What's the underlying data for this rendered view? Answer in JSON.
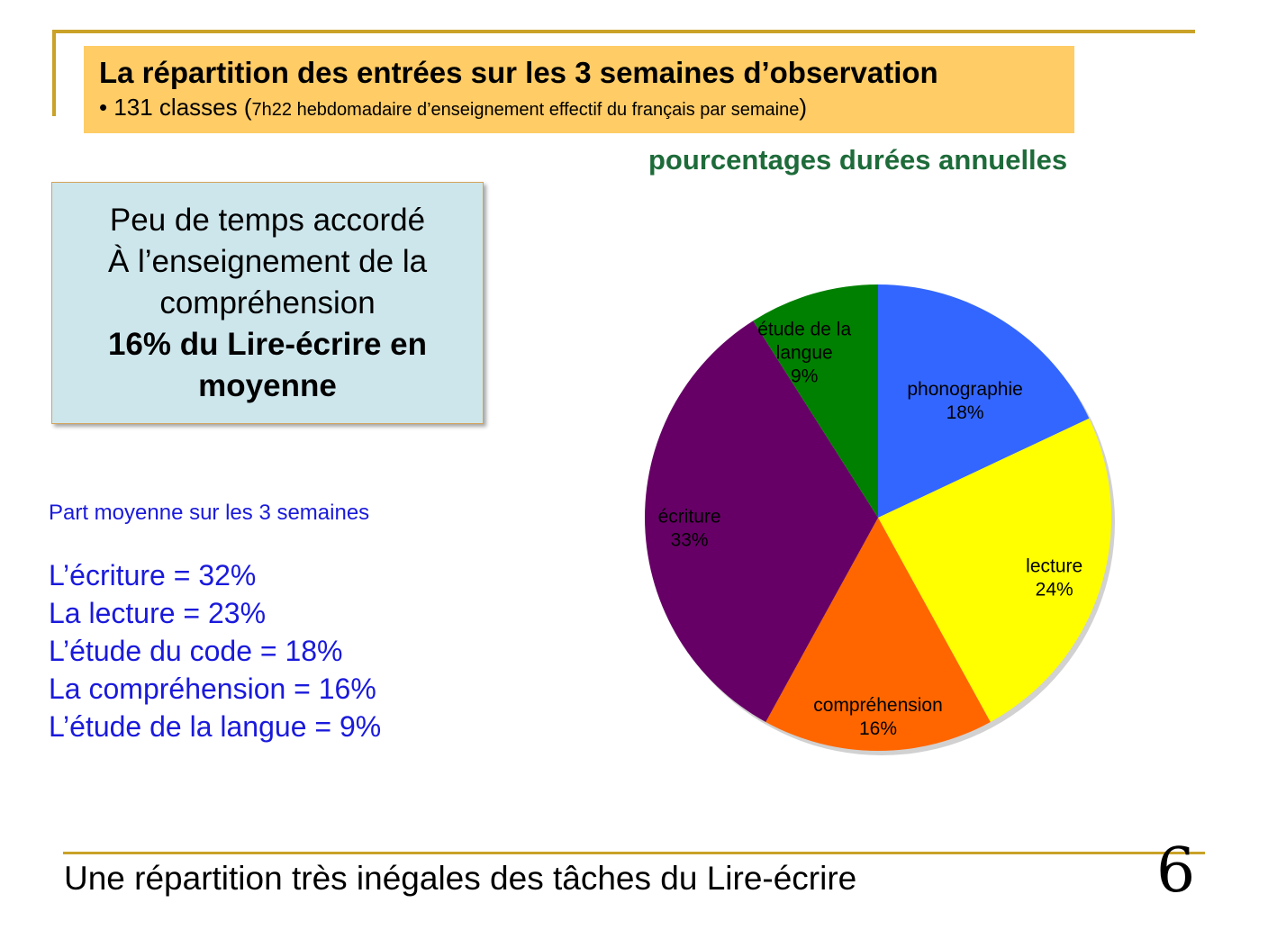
{
  "header": {
    "title": "La répartition des entrées sur les 3 semaines d’observation",
    "subtitle_main": "• 131 classes (",
    "subtitle_detail": "7h22 hebdomadaire d’enseignement effectif du français par semaine",
    "subtitle_close": ")"
  },
  "info_box": {
    "line1": "Peu de temps accordé",
    "line2": "À l’enseignement de la",
    "line3": "compréhension",
    "line4": "16% du Lire-écrire en",
    "line5": "moyenne"
  },
  "part": {
    "title": "Part moyenne sur les 3 semaines",
    "items": [
      "L’écriture = 32%",
      "La lecture = 23%",
      "L’étude du code = 18%",
      "La compréhension = 16%",
      "L’étude de la langue = 9%"
    ]
  },
  "footer": {
    "text": "Une répartition très inégales des tâches du Lire-écrire",
    "page_number": "6"
  },
  "chart_data": {
    "type": "pie",
    "title": "pourcentages durées annuelles",
    "slices": [
      {
        "name": "phonographie",
        "value": 18,
        "label": "18%",
        "color": "#3366ff"
      },
      {
        "name": "lecture",
        "value": 24,
        "label": "24%",
        "color": "#ffff00"
      },
      {
        "name": "compréhension",
        "value": 16,
        "label": "16%",
        "color": "#ff6600"
      },
      {
        "name": "écriture",
        "value": 33,
        "label": "33%",
        "color": "#660066"
      },
      {
        "name": "étude de la langue",
        "value": 9,
        "label": "9%",
        "color": "#008000"
      }
    ]
  }
}
